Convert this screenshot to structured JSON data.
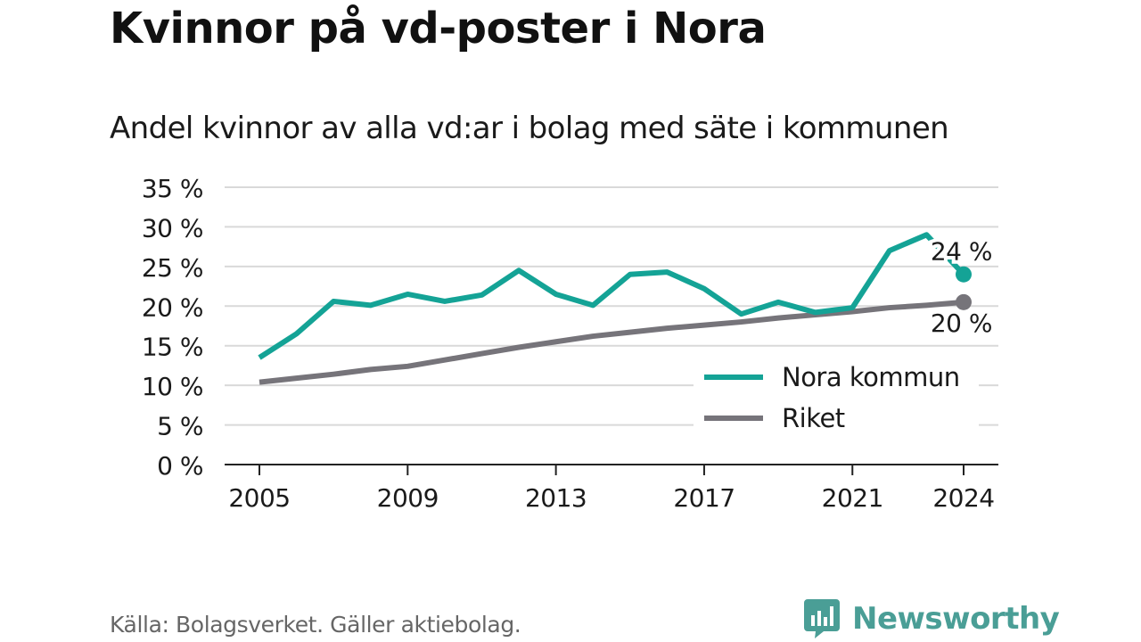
{
  "title": "Kvinnor på vd-poster i Nora",
  "subtitle": "Andel kvinnor av alla vd:ar i bolag med säte i kommunen",
  "source": "Källa: Bolagsverket. Gäller aktiebolag.",
  "brand": {
    "name": "Newsworthy",
    "color": "#4a9e96",
    "icon": "bar-chart-logo-icon"
  },
  "chart_data": {
    "type": "line",
    "x": [
      2005,
      2006,
      2007,
      2008,
      2009,
      2010,
      2011,
      2012,
      2013,
      2014,
      2015,
      2016,
      2017,
      2018,
      2019,
      2020,
      2021,
      2022,
      2023,
      2024
    ],
    "series": [
      {
        "name": "Nora kommun",
        "color": "#14a396",
        "values": [
          13.5,
          16.5,
          20.6,
          20.1,
          21.5,
          20.6,
          21.4,
          24.5,
          21.5,
          20.1,
          24.0,
          24.3,
          22.2,
          19.0,
          20.5,
          19.2,
          19.8,
          27.0,
          29.0,
          24.0
        ],
        "end_label": "24 %"
      },
      {
        "name": "Riket",
        "color": "#76747a",
        "values": [
          10.4,
          10.9,
          11.4,
          12.0,
          12.4,
          13.2,
          14.0,
          14.8,
          15.5,
          16.2,
          16.7,
          17.2,
          17.6,
          18.0,
          18.5,
          18.9,
          19.3,
          19.8,
          20.1,
          20.5
        ],
        "end_label": "20 %"
      }
    ],
    "ylim": [
      0,
      35
    ],
    "yticks": [
      0,
      5,
      10,
      15,
      20,
      25,
      30,
      35
    ],
    "ytick_labels": [
      "0 %",
      "5 %",
      "10 %",
      "15 %",
      "20 %",
      "25 %",
      "30 %",
      "35 %"
    ],
    "xticks": [
      2005,
      2009,
      2013,
      2017,
      2021,
      2024
    ],
    "xtick_labels": [
      "2005",
      "2009",
      "2013",
      "2017",
      "2021",
      "2024"
    ],
    "grid": true,
    "legend": "bottom-right"
  }
}
